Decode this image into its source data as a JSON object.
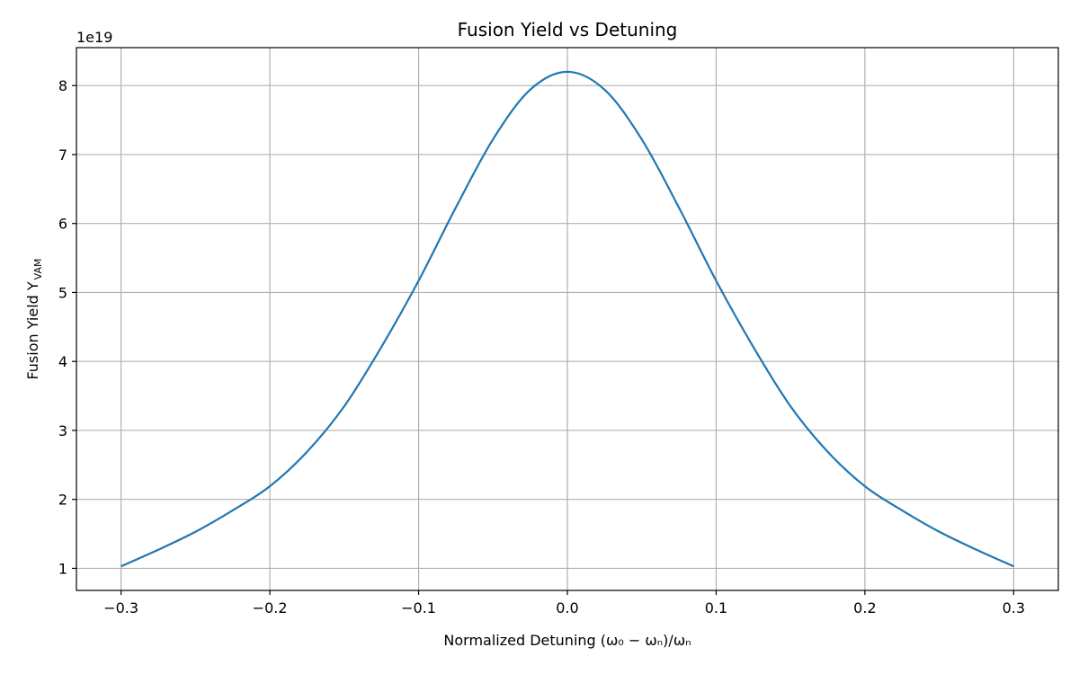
{
  "chart_data": {
    "type": "line",
    "title": "Fusion Yield vs Detuning",
    "xlabel": "Normalized Detuning (ω₀ − ωₙ)/ωₙ",
    "ylabel_main": "Fusion Yield Y",
    "ylabel_sub": "VAM",
    "y_offset_label": "1e19",
    "y_scale": 1e+19,
    "xlim": [
      -0.33,
      0.33
    ],
    "ylim": [
      0.68,
      8.55
    ],
    "grid": true,
    "x_ticks": [
      -0.3,
      -0.2,
      -0.1,
      0.0,
      0.1,
      0.2,
      0.3
    ],
    "x_tick_labels": [
      "−0.3",
      "−0.2",
      "−0.1",
      "0.0",
      "0.1",
      "0.2",
      "0.3"
    ],
    "y_ticks": [
      1,
      2,
      3,
      4,
      5,
      6,
      7,
      8
    ],
    "y_tick_labels": [
      "1",
      "2",
      "3",
      "4",
      "5",
      "6",
      "7",
      "8"
    ],
    "color": "#1f77b4",
    "series": [
      {
        "x": [
          -0.3,
          -0.275,
          -0.25,
          -0.225,
          -0.2,
          -0.175,
          -0.15,
          -0.125,
          -0.1,
          -0.075,
          -0.05,
          -0.025,
          0.0,
          0.025,
          0.05,
          0.075,
          0.1,
          0.125,
          0.15,
          0.175,
          0.2,
          0.225,
          0.25,
          0.275,
          0.3
        ],
        "y": [
          1.03,
          1.27,
          1.53,
          1.84,
          2.19,
          2.69,
          3.35,
          4.21,
          5.17,
          6.23,
          7.22,
          7.94,
          8.2,
          7.94,
          7.22,
          6.23,
          5.17,
          4.21,
          3.35,
          2.69,
          2.19,
          1.84,
          1.53,
          1.27,
          1.03
        ]
      }
    ]
  }
}
